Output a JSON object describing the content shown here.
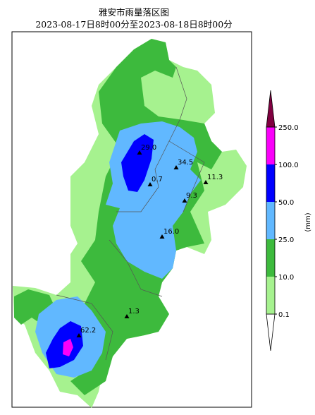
{
  "header": {
    "title": "雅安市雨量落区图",
    "subtitle": "2023-08-17日8时00分至2023-08-18日8时00分"
  },
  "stations": [
    {
      "label": "29.0"
    },
    {
      "label": "34.5"
    },
    {
      "label": "11.3"
    },
    {
      "label": "0.7"
    },
    {
      "label": "9.3"
    },
    {
      "label": "16.0"
    },
    {
      "label": "1.3"
    },
    {
      "label": "62.2"
    }
  ],
  "legend": {
    "unit": "(mm)",
    "levels": [
      {
        "label": "0.1",
        "color": "#a6f28f"
      },
      {
        "label": "10.0",
        "color": "#3dba3d"
      },
      {
        "label": "25.0",
        "color": "#61b8ff"
      },
      {
        "label": "50.0",
        "color": "#0000ff"
      },
      {
        "label": "100.0",
        "color": "#fa00fa"
      },
      {
        "label": "250.0",
        "color": "#800040"
      }
    ]
  }
}
